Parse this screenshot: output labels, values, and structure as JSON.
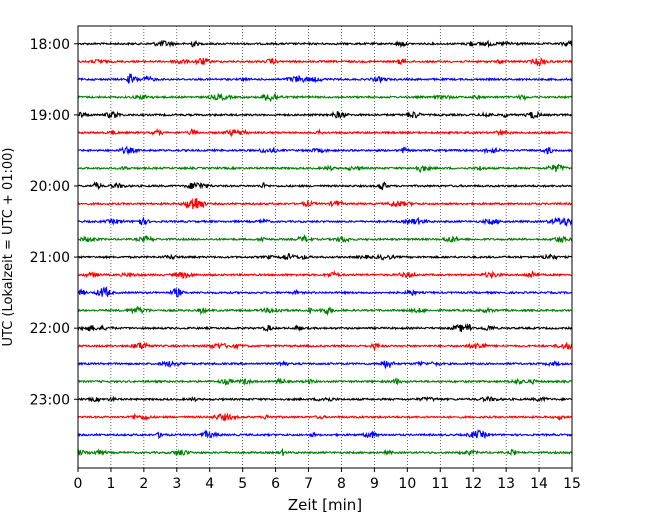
{
  "chart_data": {
    "type": "line",
    "title": "",
    "xlabel": "Zeit  [min]",
    "ylabel": "UTC (Lokalzeit = UTC + 01:00)",
    "xlim": [
      0,
      15
    ],
    "x_ticks": [
      0,
      1,
      2,
      3,
      4,
      5,
      6,
      7,
      8,
      9,
      10,
      11,
      12,
      13,
      14,
      15
    ],
    "x_tick_labels": [
      "0",
      "1",
      "2",
      "3",
      "4",
      "5",
      "6",
      "7",
      "8",
      "9",
      "10",
      "11",
      "12",
      "13",
      "14",
      "15"
    ],
    "y_range": [
      "17:45",
      "23:58"
    ],
    "y_ticks": [
      "18:00",
      "19:00",
      "20:00",
      "21:00",
      "22:00",
      "23:00"
    ],
    "y_axis_inverted": true,
    "trace_interval_minutes": 15,
    "traces": [
      {
        "start": "18:00",
        "color": "#000000"
      },
      {
        "start": "18:15",
        "color": "#ff0000"
      },
      {
        "start": "18:30",
        "color": "#0000ff"
      },
      {
        "start": "18:45",
        "color": "#008000"
      },
      {
        "start": "19:00",
        "color": "#000000"
      },
      {
        "start": "19:15",
        "color": "#ff0000"
      },
      {
        "start": "19:30",
        "color": "#0000ff"
      },
      {
        "start": "19:45",
        "color": "#008000"
      },
      {
        "start": "20:00",
        "color": "#000000"
      },
      {
        "start": "20:15",
        "color": "#ff0000"
      },
      {
        "start": "20:30",
        "color": "#0000ff"
      },
      {
        "start": "20:45",
        "color": "#008000"
      },
      {
        "start": "21:00",
        "color": "#000000"
      },
      {
        "start": "21:15",
        "color": "#ff0000"
      },
      {
        "start": "21:30",
        "color": "#0000ff"
      },
      {
        "start": "21:45",
        "color": "#008000"
      },
      {
        "start": "22:00",
        "color": "#000000"
      },
      {
        "start": "22:15",
        "color": "#ff0000"
      },
      {
        "start": "22:30",
        "color": "#0000ff"
      },
      {
        "start": "22:45",
        "color": "#008000"
      },
      {
        "start": "23:00",
        "color": "#000000"
      },
      {
        "start": "23:15",
        "color": "#ff0000"
      },
      {
        "start": "23:30",
        "color": "#0000ff"
      },
      {
        "start": "23:45",
        "color": "#008000"
      }
    ],
    "grid": {
      "x": true,
      "y": false,
      "style": "dotted"
    },
    "legend": "none"
  }
}
